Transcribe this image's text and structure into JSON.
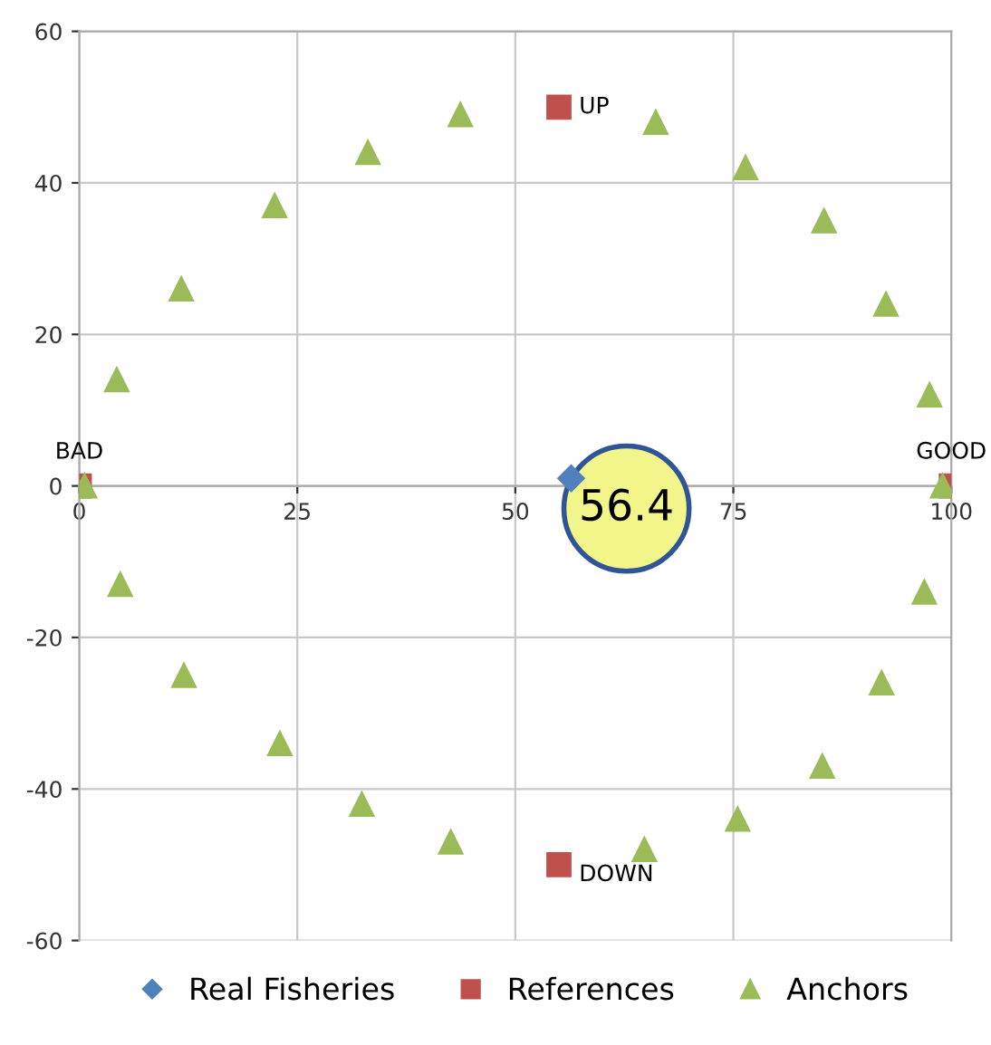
{
  "chart_data": {
    "type": "scatter",
    "xlim": [
      0,
      100
    ],
    "xticks": [
      0,
      25,
      50,
      75,
      100
    ],
    "ylim": [
      -60,
      60
    ],
    "yticks": [
      -60,
      -40,
      -20,
      0,
      20,
      40,
      60
    ],
    "grid": true,
    "legend": "bottom",
    "series": [
      {
        "name": "Real Fisheries",
        "color": "#4f81bd",
        "marker": "diamond",
        "x": [
          56.4
        ],
        "values": [
          1
        ]
      },
      {
        "name": "References",
        "color": "#c0504d",
        "marker": "square",
        "x": [
          0,
          100,
          55,
          55
        ],
        "values": [
          0,
          0,
          50,
          -50
        ],
        "value_labels": [
          "BAD",
          "GOOD",
          "UP",
          "DOWN"
        ]
      },
      {
        "name": "Anchors",
        "color": "#9bbb59",
        "marker": "triangle",
        "x": [
          0.6,
          4.3,
          11.7,
          22.4,
          33.1,
          43.7,
          66.1,
          76.4,
          85.4,
          92.5,
          97.5,
          99,
          96.9,
          92.0,
          85.2,
          75.5,
          64.8,
          42.6,
          32.4,
          23.0,
          12.0,
          4.7
        ],
        "values": [
          0,
          14,
          26,
          37,
          44,
          49,
          48,
          42,
          35,
          24,
          12,
          0,
          -14,
          -26,
          -37,
          -44,
          -48,
          -47,
          -42,
          -34,
          -25,
          -13
        ]
      }
    ],
    "annotations": [
      {
        "text": "56.4",
        "x": 56.4,
        "y": 1
      }
    ]
  }
}
